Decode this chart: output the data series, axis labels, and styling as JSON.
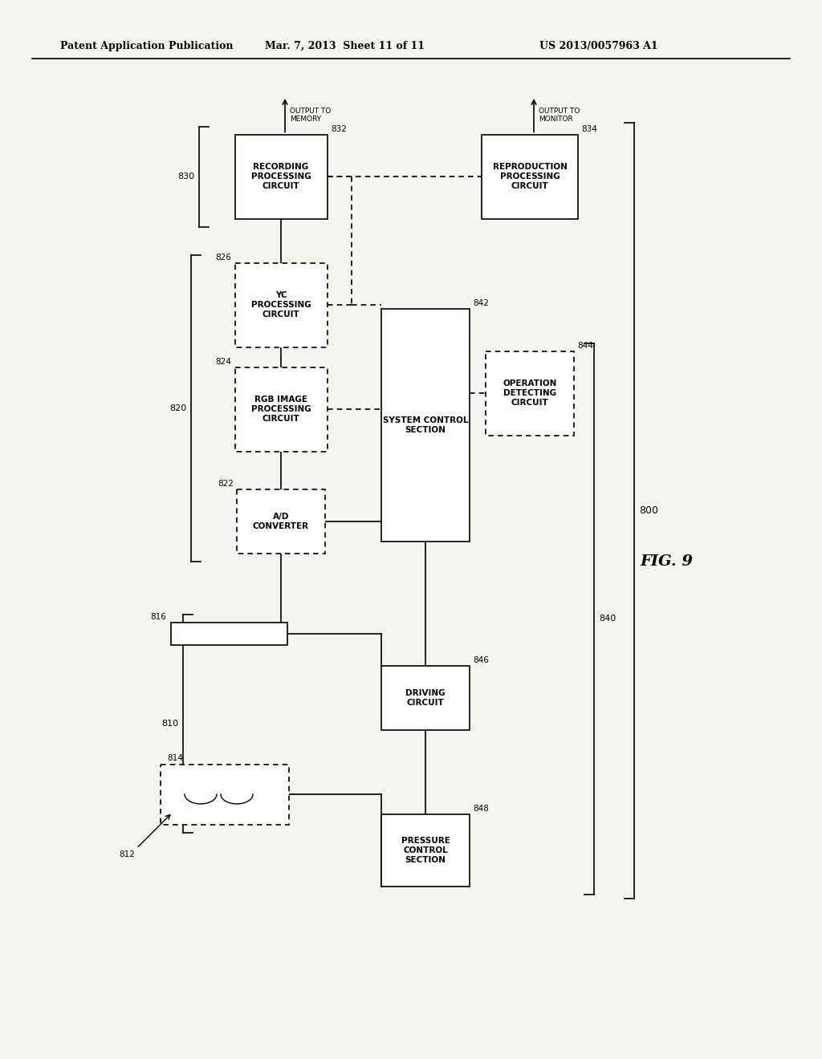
{
  "title_left": "Patent Application Publication",
  "title_mid": "Mar. 7, 2013  Sheet 11 of 11",
  "title_right": "US 2013/0057963 A1",
  "fig_label": "FIG. 9",
  "bg_color": "#f5f5f0",
  "line_color": "#000000",
  "box_border": "#000000",
  "text_color": "#000000"
}
